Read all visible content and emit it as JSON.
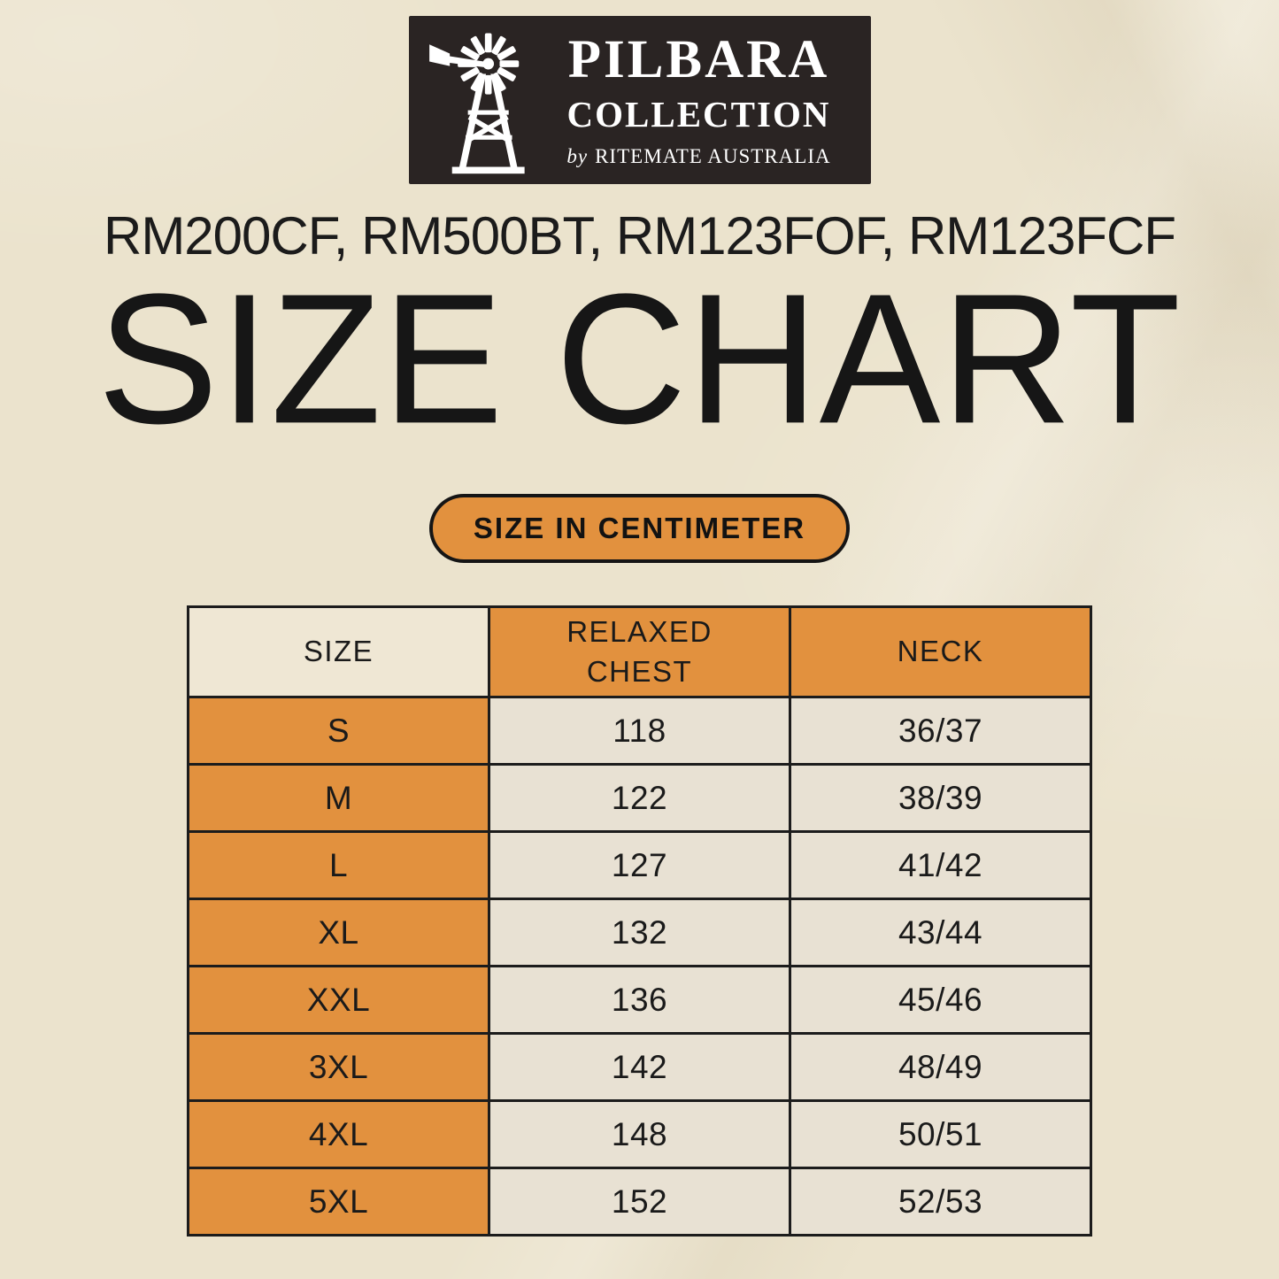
{
  "logo": {
    "brand": "PILBARA",
    "line2": "COLLECTION",
    "byline_prefix": "by",
    "byline": "RITEMATE AUSTRALIA"
  },
  "product_codes": "RM200CF, RM500BT, RM123FOF, RM123FCF",
  "title": "SIZE CHART",
  "badge": {
    "label": "SIZE IN CENTIMETER"
  },
  "chart_data": {
    "type": "table",
    "title": "SIZE CHART",
    "columns": [
      "SIZE",
      "RELAXED CHEST",
      "NECK"
    ],
    "rows": [
      [
        "S",
        "118",
        "36/37"
      ],
      [
        "M",
        "122",
        "38/39"
      ],
      [
        "L",
        "127",
        "41/42"
      ],
      [
        "XL",
        "132",
        "43/44"
      ],
      [
        "XXL",
        "136",
        "45/46"
      ],
      [
        "3XL",
        "142",
        "48/49"
      ],
      [
        "4XL",
        "148",
        "50/51"
      ],
      [
        "5XL",
        "152",
        "52/53"
      ]
    ]
  },
  "colors": {
    "background": "#EBE3CD",
    "accent_orange": "#E2913E",
    "logo_bg": "#2A2423",
    "cell_light": "#E8E1D3",
    "header_left_bg": "#EFE7D4",
    "border": "#1C1C1C"
  }
}
